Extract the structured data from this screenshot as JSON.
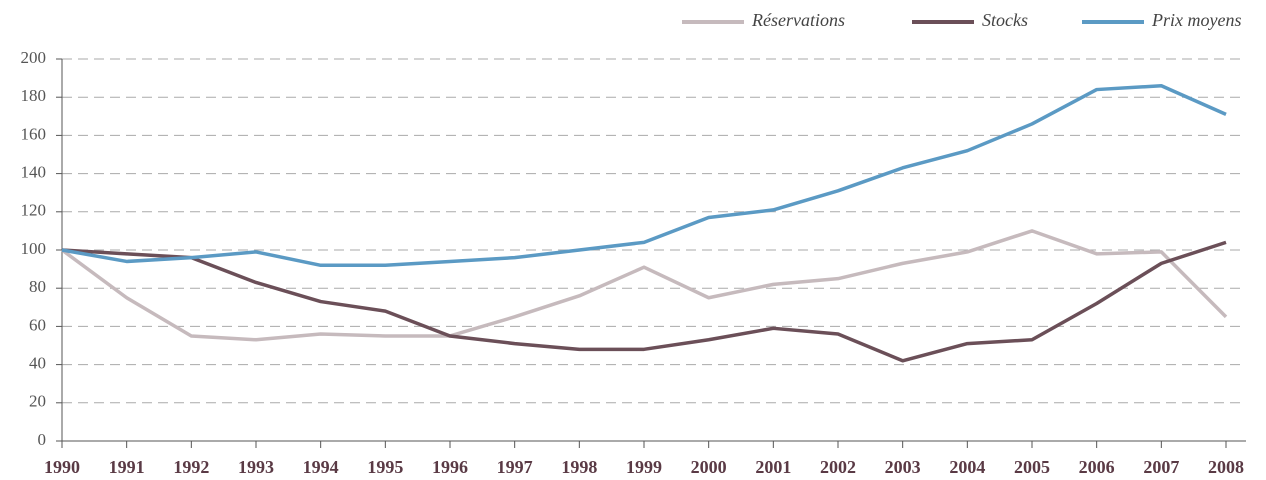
{
  "chart_data": {
    "type": "line",
    "categories": [
      "1990",
      "1991",
      "1992",
      "1993",
      "1994",
      "1995",
      "1996",
      "1997",
      "1998",
      "1999",
      "2000",
      "2001",
      "2002",
      "2003",
      "2004",
      "2005",
      "2006",
      "2007",
      "2008"
    ],
    "series": [
      {
        "name": "Réservations",
        "color": "#c6babd",
        "values": [
          100,
          75,
          55,
          53,
          56,
          55,
          55,
          65,
          76,
          91,
          75,
          82,
          85,
          93,
          99,
          110,
          98,
          99,
          65
        ]
      },
      {
        "name": "Stocks",
        "color": "#6b4f58",
        "values": [
          100,
          98,
          96,
          83,
          73,
          68,
          55,
          51,
          48,
          48,
          53,
          59,
          56,
          42,
          51,
          53,
          72,
          93,
          104
        ]
      },
      {
        "name": "Prix moyens",
        "color": "#5b9ac4",
        "values": [
          100,
          94,
          96,
          99,
          92,
          92,
          94,
          96,
          100,
          104,
          117,
          121,
          131,
          143,
          152,
          166,
          184,
          186,
          171
        ]
      }
    ],
    "ylim": [
      0,
      200
    ],
    "yticks": [
      0,
      20,
      40,
      60,
      80,
      100,
      120,
      140,
      160,
      180,
      200
    ],
    "grid": true,
    "legend": "top-right"
  }
}
